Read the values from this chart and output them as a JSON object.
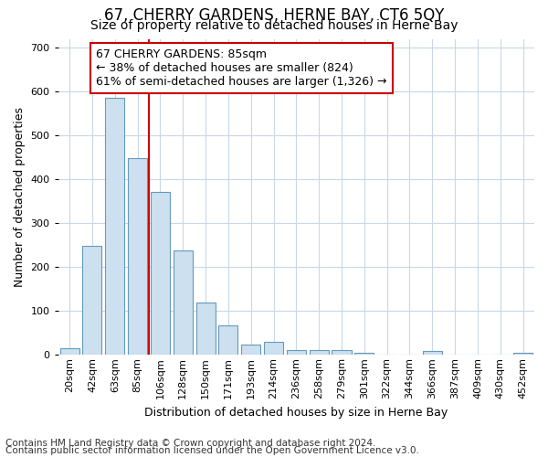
{
  "title": "67, CHERRY GARDENS, HERNE BAY, CT6 5QY",
  "subtitle": "Size of property relative to detached houses in Herne Bay",
  "xlabel": "Distribution of detached houses by size in Herne Bay",
  "ylabel": "Number of detached properties",
  "bar_labels": [
    "20sqm",
    "42sqm",
    "63sqm",
    "85sqm",
    "106sqm",
    "128sqm",
    "150sqm",
    "171sqm",
    "193sqm",
    "214sqm",
    "236sqm",
    "258sqm",
    "279sqm",
    "301sqm",
    "322sqm",
    "344sqm",
    "366sqm",
    "387sqm",
    "409sqm",
    "430sqm",
    "452sqm"
  ],
  "bar_values": [
    15,
    248,
    585,
    448,
    372,
    238,
    120,
    68,
    23,
    30,
    12,
    12,
    10,
    5,
    0,
    0,
    8,
    0,
    0,
    0,
    5
  ],
  "bar_color": "#cce0f0",
  "bar_edge_color": "#6699bb",
  "highlight_idx": 3,
  "highlight_color": "#cc0000",
  "annotation_line1": "67 CHERRY GARDENS: 85sqm",
  "annotation_line2": "← 38% of detached houses are smaller (824)",
  "annotation_line3": "61% of semi-detached houses are larger (1,326) →",
  "annotation_box_facecolor": "#ffffff",
  "annotation_box_edgecolor": "#cc0000",
  "ylim": [
    0,
    720
  ],
  "yticks": [
    0,
    100,
    200,
    300,
    400,
    500,
    600,
    700
  ],
  "footer_line1": "Contains HM Land Registry data © Crown copyright and database right 2024.",
  "footer_line2": "Contains public sector information licensed under the Open Government Licence v3.0.",
  "bg_color": "#ffffff",
  "plot_bg_color": "#ffffff",
  "grid_color": "#c8d8e8",
  "title_fontsize": 12,
  "subtitle_fontsize": 10,
  "xlabel_fontsize": 9,
  "ylabel_fontsize": 9,
  "tick_fontsize": 8,
  "annotation_fontsize": 9,
  "footer_fontsize": 7.5
}
